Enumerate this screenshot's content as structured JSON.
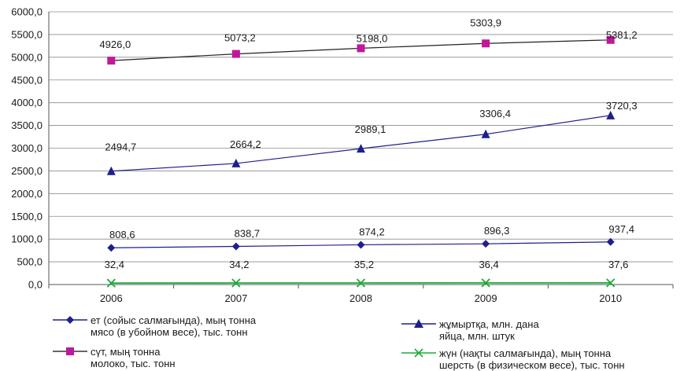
{
  "chart_data": {
    "type": "line",
    "x": [
      "2006",
      "2007",
      "2008",
      "2009",
      "2010"
    ],
    "yticks": [
      "6000,0",
      "5500,0",
      "5000,0",
      "4500,0",
      "4000,0",
      "3500,0",
      "3000,0",
      "2500,0",
      "2000,0",
      "1500,0",
      "1000,0",
      "500,0",
      "0,0"
    ],
    "ylim": [
      0,
      6000
    ],
    "grid": true,
    "legend_position": "bottom",
    "series": [
      {
        "name_kk": "ет (сойыс салмағында), мың тонна",
        "name_ru": "мясо (в убойном весе), тыс. тонн",
        "values": [
          808.6,
          838.7,
          874.2,
          896.3,
          937.4
        ],
        "labels": [
          "808,6",
          "838,7",
          "874,2",
          "896,3",
          "937,4"
        ],
        "color": "#1f1f8c",
        "marker": "diamond"
      },
      {
        "name_kk": "сүт, мың тонна",
        "name_ru": "молоко, тыс. тонн",
        "values": [
          4926.0,
          5073.2,
          5198.0,
          5303.9,
          5381.2
        ],
        "labels": [
          "4926,0",
          "5073,2",
          "5198,0",
          "5303,9",
          "5381,2"
        ],
        "color": "#c0189a",
        "marker": "square"
      },
      {
        "name_kk": "жұмыртқа, млн. дана",
        "name_ru": "яйца, млн. штук",
        "values": [
          2494.7,
          2664.2,
          2989.1,
          3306.4,
          3720.3
        ],
        "labels": [
          "2494,7",
          "2664,2",
          "2989,1",
          "3306,4",
          "3720,3"
        ],
        "color": "#1f1f8c",
        "marker": "triangle"
      },
      {
        "name_kk": "жүн (нақты салмағында),  мың тонна",
        "name_ru": "шерсть (в физическом весе), тыс. тонн",
        "values": [
          32.4,
          34.2,
          35.2,
          36.4,
          37.6
        ],
        "labels": [
          "32,4",
          "34,2",
          "35,2",
          "36,4",
          "37,6"
        ],
        "color": "#1faa3a",
        "marker": "x"
      }
    ]
  }
}
